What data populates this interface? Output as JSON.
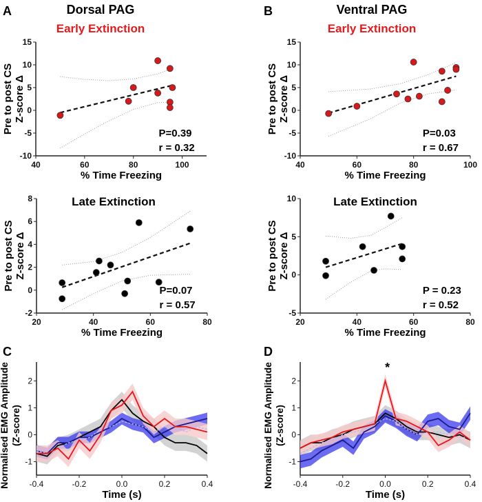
{
  "panel_labels": [
    "A",
    "B",
    "C",
    "D"
  ],
  "column_titles": [
    "Dorsal PAG",
    "Ventral PAG"
  ],
  "colors": {
    "early": "#e31a1c",
    "black": "#000000",
    "red": "#e8161b",
    "navy": "#1a1a8c",
    "blue_band": "#3b3bef",
    "grey_band": "#c8c8c8",
    "pink_band": "#f7c9c9",
    "lavender": "#b9b6f0"
  },
  "chart_data": [
    {
      "id": "dorsal-early",
      "type": "scatter",
      "title": "Early Extinction",
      "xlabel": "% Time Freezing",
      "ylabel": [
        "Pre to post CS",
        "Z-score Δ"
      ],
      "xlim": [
        40,
        110
      ],
      "ylim": [
        -10,
        15
      ],
      "xticks": [
        40,
        60,
        80,
        100
      ],
      "yticks": [
        -10,
        -5,
        0,
        5,
        10,
        15
      ],
      "points": [
        [
          50,
          -1.1
        ],
        [
          78,
          2
        ],
        [
          80,
          5
        ],
        [
          90,
          10.9
        ],
        [
          90,
          3.8
        ],
        [
          95,
          9.2
        ],
        [
          96,
          5
        ],
        [
          95,
          1.8
        ],
        [
          95,
          0.6
        ]
      ],
      "fit": [
        [
          50,
          -0.5
        ],
        [
          96,
          5.5
        ]
      ],
      "ci_upper": [
        [
          50,
          7.4
        ],
        [
          60,
          6.8
        ],
        [
          70,
          6.5
        ],
        [
          80,
          6.9
        ],
        [
          90,
          8.0
        ],
        [
          95,
          9.0
        ]
      ],
      "ci_lower": [
        [
          50,
          -8.3
        ],
        [
          60,
          -5.2
        ],
        [
          70,
          -2.3
        ],
        [
          80,
          0.2
        ],
        [
          90,
          1.7
        ],
        [
          95,
          1.8
        ]
      ],
      "stats": [
        "P=0.39",
        "r = 0.32"
      ],
      "marker": "red"
    },
    {
      "id": "ventral-early",
      "type": "scatter",
      "title": "Early Extinction",
      "xlabel": "% Time Freezing",
      "ylabel": [
        "Pre to post CS",
        "Z-score Δ"
      ],
      "xlim": [
        40,
        100
      ],
      "ylim": [
        -10,
        15
      ],
      "xticks": [
        40,
        60,
        80,
        100
      ],
      "yticks": [
        -10,
        -5,
        0,
        5,
        10,
        15
      ],
      "points": [
        [
          50,
          -0.7
        ],
        [
          60,
          0.9
        ],
        [
          74,
          3.6
        ],
        [
          78,
          2.5
        ],
        [
          80,
          10.6
        ],
        [
          82,
          3.1
        ],
        [
          90,
          8.6
        ],
        [
          90,
          1.9
        ],
        [
          92,
          4.4
        ],
        [
          95,
          9.4
        ],
        [
          95,
          9.0
        ]
      ],
      "fit": [
        [
          50,
          -0.6
        ],
        [
          95,
          7.5
        ]
      ],
      "ci_upper": [
        [
          50,
          4.1
        ],
        [
          65,
          4.7
        ],
        [
          75,
          5.8
        ],
        [
          85,
          7.8
        ],
        [
          95,
          10.5
        ]
      ],
      "ci_lower": [
        [
          50,
          -5.7
        ],
        [
          65,
          -1.8
        ],
        [
          75,
          1.5
        ],
        [
          85,
          3.6
        ],
        [
          95,
          4.5
        ]
      ],
      "stats": [
        "P=0.03",
        "r = 0.67"
      ],
      "marker": "red"
    },
    {
      "id": "dorsal-late",
      "type": "scatter",
      "title": "Late Extinction",
      "xlabel": "% Time Freezing",
      "ylabel": [
        "Pre to post CS",
        "Z-score Δ"
      ],
      "xlim": [
        20,
        80
      ],
      "ylim": [
        -2,
        8
      ],
      "xticks": [
        20,
        40,
        60,
        80
      ],
      "yticks": [
        -2,
        0,
        2,
        4,
        6,
        8
      ],
      "points": [
        [
          29,
          0.65
        ],
        [
          29,
          -0.75
        ],
        [
          41,
          1.55
        ],
        [
          42,
          2.55
        ],
        [
          46,
          2.2
        ],
        [
          51,
          -0.3
        ],
        [
          52,
          0.8
        ],
        [
          56,
          5.9
        ],
        [
          63,
          0.7
        ],
        [
          74,
          5.35
        ]
      ],
      "fit": [
        [
          29,
          0.25
        ],
        [
          74,
          4.1
        ]
      ],
      "ci_upper": [
        [
          29,
          2.2
        ],
        [
          40,
          2.5
        ],
        [
          50,
          3.3
        ],
        [
          60,
          4.6
        ],
        [
          74,
          6.9
        ]
      ],
      "ci_lower": [
        [
          29,
          -1.7
        ],
        [
          40,
          -0.3
        ],
        [
          50,
          0.8
        ],
        [
          60,
          1.3
        ],
        [
          74,
          1.4
        ]
      ],
      "stats": [
        "P=0.07",
        "r = 0.57"
      ],
      "marker": "black"
    },
    {
      "id": "ventral-late",
      "type": "scatter",
      "title": "Late Extinction",
      "xlabel": "% Time Freezing",
      "ylabel": [
        "Pre to post CS",
        "Z-score Δ"
      ],
      "xlim": [
        20,
        80
      ],
      "ylim": [
        -5,
        10
      ],
      "xticks": [
        20,
        40,
        60,
        80
      ],
      "yticks": [
        -5,
        0,
        5,
        10
      ],
      "points": [
        [
          29,
          1.8
        ],
        [
          29,
          -0.1
        ],
        [
          42,
          3.7
        ],
        [
          46,
          0.6
        ],
        [
          52,
          7.7
        ],
        [
          56,
          3.7
        ],
        [
          56,
          2.1
        ]
      ],
      "fit": [
        [
          29,
          1.0
        ],
        [
          56,
          4.1
        ]
      ],
      "ci_upper": [
        [
          29,
          5.1
        ],
        [
          38,
          4.8
        ],
        [
          45,
          5.2
        ],
        [
          50,
          6.2
        ],
        [
          56,
          7.5
        ]
      ],
      "ci_lower": [
        [
          29,
          -3.2
        ],
        [
          38,
          -0.9
        ],
        [
          45,
          0.5
        ],
        [
          50,
          0.8
        ],
        [
          56,
          0.7
        ]
      ],
      "stats": [
        "P = 0.23",
        "r = 0.52"
      ],
      "marker": "black"
    },
    {
      "id": "dorsal-emg",
      "type": "line",
      "xlabel": "Time (s)",
      "ylabel": [
        "Normalised EMG Amplitude",
        "(Z-score)"
      ],
      "xlim": [
        -0.4,
        0.4
      ],
      "ylim": [
        -1.5,
        2.7
      ],
      "xticks": [
        "-0.4",
        "-0.2",
        "0.0",
        "0.2",
        "0.4"
      ],
      "yticks": [
        -1,
        0,
        1,
        2
      ],
      "x": [
        -0.4,
        -0.35,
        -0.3,
        -0.25,
        -0.2,
        -0.15,
        -0.1,
        -0.05,
        0,
        0.05,
        0.1,
        0.15,
        0.2,
        0.25,
        0.3,
        0.35,
        0.4
      ],
      "series": [
        {
          "name": "black",
          "band": "grey_band",
          "sem": 0.3,
          "values": [
            -0.7,
            -0.8,
            -0.4,
            -0.3,
            -0.1,
            0.1,
            0.3,
            0.9,
            1.3,
            0.8,
            0.5,
            0.3,
            -0.1,
            -0.3,
            -0.3,
            -0.4,
            -0.7
          ]
        },
        {
          "name": "navy",
          "band": "blue_band",
          "sem": 0.22,
          "values": [
            -0.6,
            -0.7,
            -0.3,
            -0.3,
            -0.1,
            -0.1,
            0.1,
            0.3,
            0.6,
            0.4,
            0.3,
            -0.1,
            0.1,
            0.3,
            0.4,
            0.5,
            0.6
          ]
        },
        {
          "name": "lavender",
          "dashed": true,
          "values": [
            -0.6,
            -0.7,
            -0.5,
            -0.3,
            -0.2,
            -0.1,
            0.2,
            0.3,
            0.5,
            0.4,
            0.3,
            0.1,
            0.3,
            0.3,
            0.1,
            0.3,
            0.2
          ]
        },
        {
          "name": "red",
          "band": "pink_band",
          "sem": 0.3,
          "values": [
            -0.7,
            -0.7,
            -0.5,
            -0.9,
            -0.2,
            -0.6,
            0.0,
            0.9,
            1.1,
            1.6,
            0.7,
            0.3,
            0.6,
            0.3,
            0.3,
            0.2,
            0.1
          ]
        }
      ],
      "annotation": ""
    },
    {
      "id": "ventral-emg",
      "type": "line",
      "xlabel": "Time (s)",
      "ylabel": [
        "Normalised EMG Amplitude",
        "(Z-score)"
      ],
      "xlim": [
        -0.4,
        0.4
      ],
      "ylim": [
        -1.5,
        2.7
      ],
      "xticks": [
        "-0.4",
        "-0.2",
        "0.0",
        "0.2",
        "0.4"
      ],
      "yticks": [
        -1,
        0,
        1,
        2
      ],
      "x": [
        -0.4,
        -0.35,
        -0.3,
        -0.25,
        -0.2,
        -0.15,
        -0.1,
        -0.05,
        0,
        0.05,
        0.1,
        0.15,
        0.2,
        0.25,
        0.3,
        0.35,
        0.4
      ],
      "series": [
        {
          "name": "black",
          "band": "grey_band",
          "sem": 0.3,
          "values": [
            -0.5,
            -0.3,
            -0.3,
            -0.1,
            0.0,
            0.2,
            0.3,
            0.4,
            0.8,
            0.6,
            0.3,
            0.1,
            0.1,
            0.0,
            -0.1,
            0.0,
            -0.2
          ]
        },
        {
          "name": "navy",
          "band": "blue_band",
          "sem": 0.25,
          "values": [
            -1.0,
            -0.9,
            -0.6,
            -0.4,
            -0.2,
            -0.5,
            0.1,
            0.3,
            0.7,
            0.5,
            0.2,
            0.0,
            0.5,
            0.6,
            0.3,
            0.2,
            0.8
          ]
        },
        {
          "name": "lavender",
          "dashed": true,
          "values": [
            -0.7,
            -0.5,
            -0.3,
            -0.2,
            0.0,
            0.1,
            0.2,
            0.4,
            0.6,
            0.5,
            0.2,
            0.0,
            0.1,
            0.1,
            0.0,
            -0.1,
            -0.1
          ]
        },
        {
          "name": "red",
          "band": "pink_band",
          "sem": 0.25,
          "values": [
            -0.5,
            -0.3,
            -0.2,
            -0.1,
            0.1,
            0.2,
            0.3,
            0.4,
            2.0,
            0.6,
            0.5,
            0.3,
            0.1,
            -0.4,
            -0.2,
            0.1,
            -0.2
          ]
        }
      ],
      "annotation": "*"
    }
  ]
}
